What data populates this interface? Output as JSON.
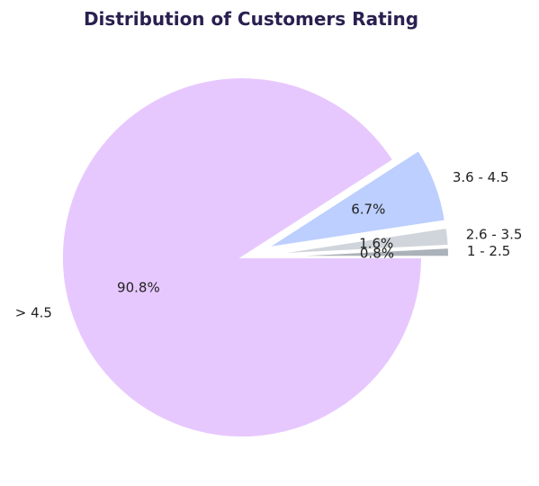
{
  "chart_data": {
    "type": "pie",
    "title": "Distribution of Customers Rating",
    "slices": [
      {
        "label": "1 - 2.5",
        "value": 0.8,
        "pct_label": "0.8%",
        "color": "#abb2b9",
        "explode": true
      },
      {
        "label": "2.6 - 3.5",
        "value": 1.6,
        "pct_label": "1.6%",
        "color": "#d0d5db",
        "explode": true
      },
      {
        "label": "3.6 - 4.5",
        "value": 6.7,
        "pct_label": "6.7%",
        "color": "#bccffe",
        "explode": true
      },
      {
        "label": "> 4.5",
        "value": 90.8,
        "pct_label": "90.8%",
        "color": "#e7c8fe",
        "explode": false
      }
    ]
  }
}
